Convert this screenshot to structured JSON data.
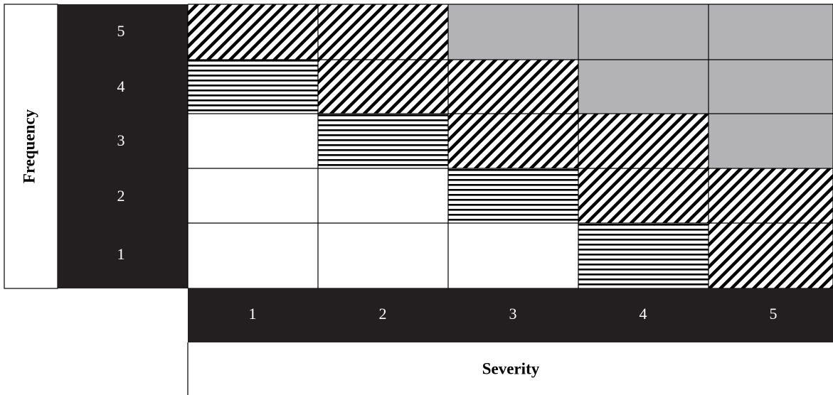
{
  "matrix": {
    "y_axis_label": "Frequency",
    "x_axis_label": "Severity",
    "frequency_levels": [
      "5",
      "4",
      "3",
      "2",
      "1"
    ],
    "severity_levels": [
      "1",
      "2",
      "3",
      "4",
      "5"
    ],
    "legend_fill_names": [
      "blank",
      "horizontal-lines",
      "diagonal-hatch",
      "gray"
    ],
    "cells": [
      [
        "diagonal-hatch",
        "diagonal-hatch",
        "gray",
        "gray",
        "gray"
      ],
      [
        "horizontal-lines",
        "diagonal-hatch",
        "diagonal-hatch",
        "gray",
        "gray"
      ],
      [
        "blank",
        "horizontal-lines",
        "diagonal-hatch",
        "diagonal-hatch",
        "gray"
      ],
      [
        "blank",
        "blank",
        "horizontal-lines",
        "diagonal-hatch",
        "diagonal-hatch"
      ],
      [
        "blank",
        "blank",
        "blank",
        "horizontal-lines",
        "diagonal-hatch"
      ]
    ],
    "colors": {
      "header_band": "#231f20",
      "gray_fill": "#b3b3b5",
      "line": "#000000",
      "blank": "#ffffff"
    }
  }
}
